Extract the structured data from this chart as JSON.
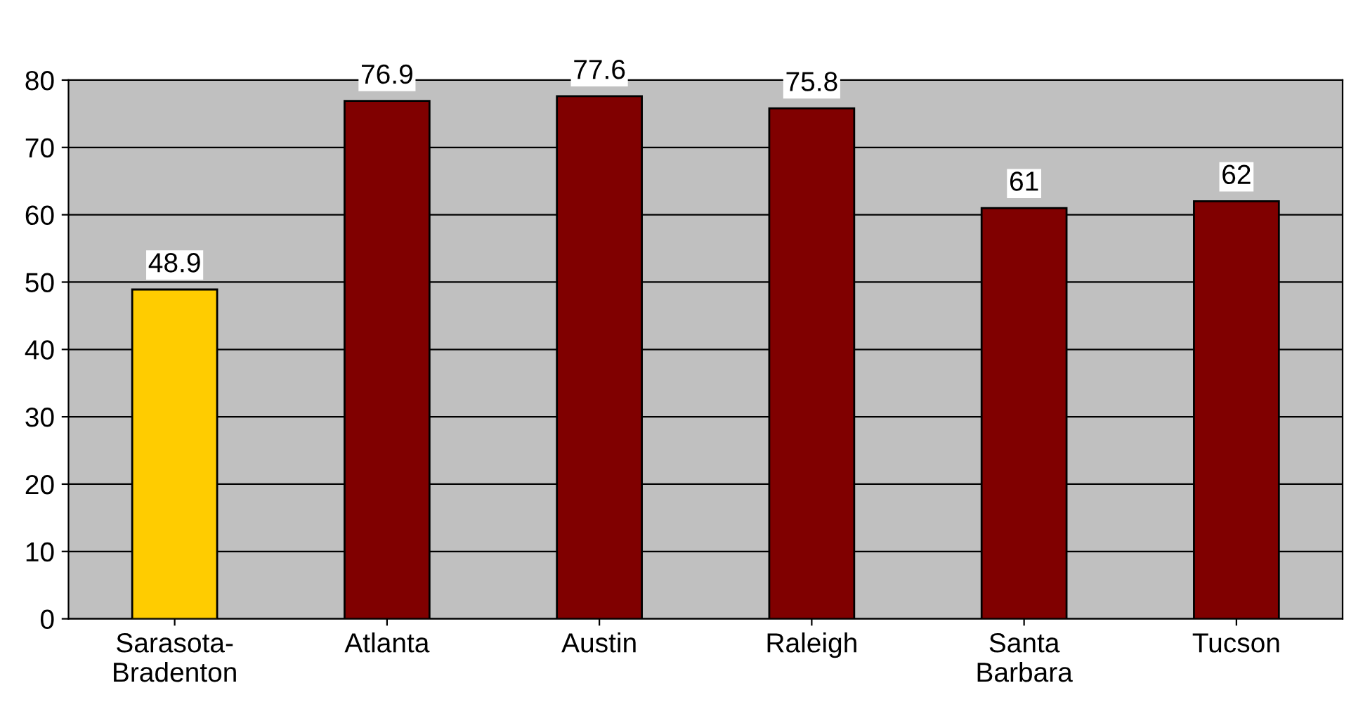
{
  "chart_data": {
    "type": "bar",
    "categories": [
      "Sarasota-\nBradenton",
      "Atlanta",
      "Austin",
      "Raleigh",
      "Santa\nBarbara",
      "Tucson"
    ],
    "values": [
      48.9,
      76.9,
      77.6,
      75.8,
      61,
      62
    ],
    "colors": [
      "#ffcc00",
      "#800000",
      "#800000",
      "#800000",
      "#800000",
      "#800000"
    ],
    "ylim": [
      0,
      80
    ],
    "yticks": [
      0,
      10,
      20,
      30,
      40,
      50,
      60,
      70,
      80
    ],
    "grid": "y",
    "data_labels": true
  }
}
